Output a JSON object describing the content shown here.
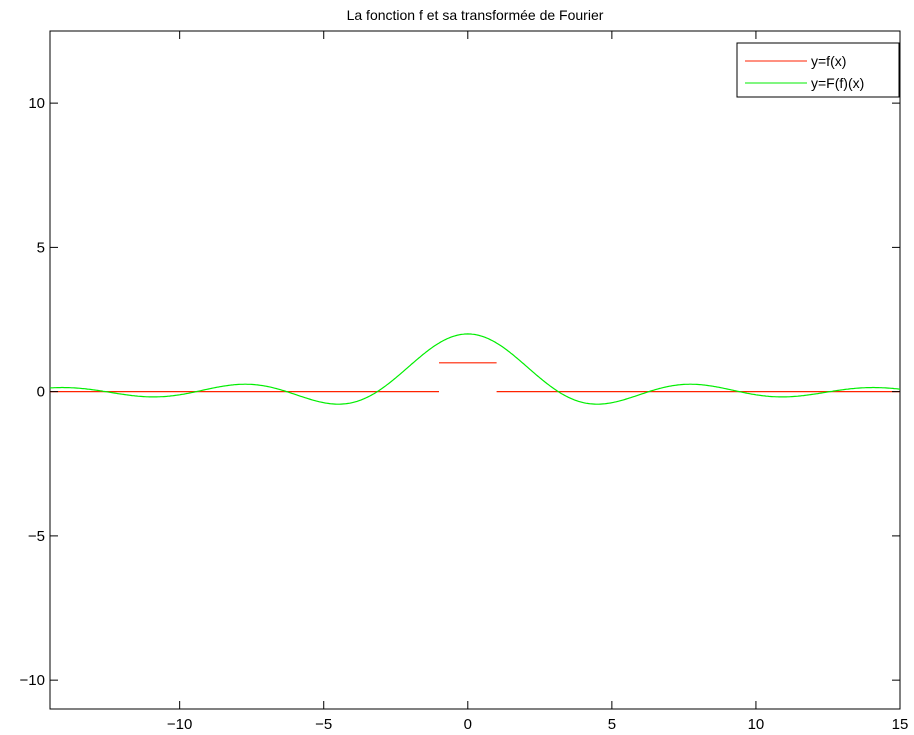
{
  "chart_data": {
    "type": "line",
    "title": "La fonction f et sa transformée de Fourier",
    "xlabel": "",
    "ylabel": "",
    "xlim": [
      -14.5,
      15
    ],
    "ylim": [
      -11,
      12.5
    ],
    "xticks": [
      -10,
      -5,
      0,
      5,
      10,
      15
    ],
    "yticks": [
      -10,
      -5,
      0,
      5,
      10
    ],
    "xtick_labels": [
      "−10",
      "−5",
      "0",
      "5",
      "10",
      "15"
    ],
    "ytick_labels": [
      "−10",
      "−5",
      "0",
      "5",
      "10"
    ],
    "grid": false,
    "legend_position": "top-right",
    "series": [
      {
        "name": "y=f(x)",
        "color": "#ff2200",
        "segments": [
          {
            "x": [
              -14.5,
              -1
            ],
            "y": [
              0,
              0
            ]
          },
          {
            "x": [
              -1,
              1
            ],
            "y": [
              1,
              1
            ]
          },
          {
            "x": [
              1,
              15
            ],
            "y": [
              0,
              0
            ]
          }
        ]
      },
      {
        "name": "y=F(f)(x)",
        "color": "#00ee00",
        "formula": "2*sin(x)/x",
        "x": [
          -14.5,
          -14,
          -13,
          -12.57,
          -12,
          -11,
          -10,
          -9.42,
          -9,
          -8,
          -7.73,
          -7,
          -6.28,
          -6,
          -5,
          -4.49,
          -4,
          -3.14,
          -3,
          -2,
          -1,
          0,
          1,
          2,
          3,
          3.14,
          4,
          4.49,
          5,
          6,
          6.28,
          7,
          7.73,
          8,
          9,
          9.42,
          10,
          11,
          12,
          12.57,
          13,
          14,
          15
        ],
        "y": [
          0.13,
          0.14,
          0.06,
          0,
          -0.09,
          -0.18,
          -0.11,
          0,
          0.09,
          0.25,
          0.26,
          0.19,
          0,
          -0.09,
          -0.38,
          -0.43,
          -0.38,
          0,
          0.09,
          0.91,
          1.68,
          2,
          1.68,
          0.91,
          0.09,
          0,
          -0.38,
          -0.43,
          -0.38,
          -0.09,
          0,
          0.19,
          0.26,
          0.25,
          0.09,
          0,
          -0.11,
          -0.18,
          -0.09,
          0,
          0.06,
          0.14,
          0.09
        ]
      }
    ]
  }
}
